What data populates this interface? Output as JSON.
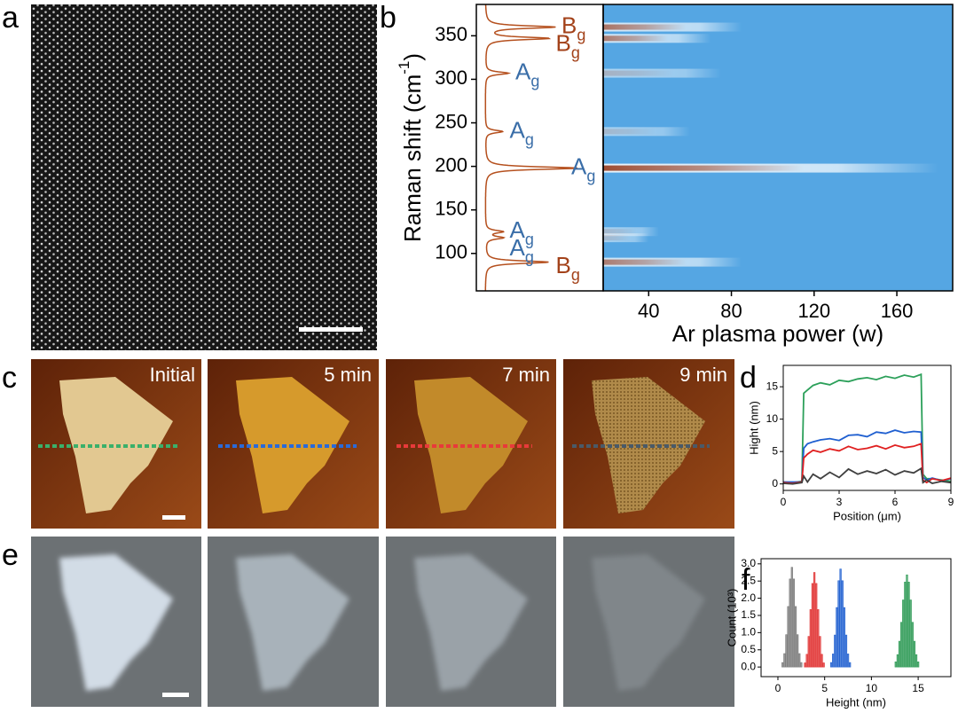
{
  "panel_labels": [
    "a",
    "b",
    "c",
    "d",
    "e",
    "f"
  ],
  "afm_times": [
    "Initial",
    "5 min",
    "7 min",
    "9 min"
  ],
  "chart_data": [
    {
      "type": "heatmap",
      "xlabel": "Ar plasma power (w)",
      "ylabel": "Raman shift (cm",
      "ylabel_sup": "-1",
      "ylabel_end": ")",
      "xlim": [
        18,
        187
      ],
      "xticks": [
        40,
        80,
        120,
        160
      ],
      "ylim": [
        57,
        386
      ],
      "yticks": [
        100,
        150,
        200,
        250,
        300,
        350
      ],
      "background": "#55a6e3",
      "peak_color": "#8b2200",
      "curve_color": "#b5501e",
      "peaks": [
        {
          "label": "B",
          "sub": "g",
          "shift": 360,
          "intensity": 0.6,
          "extent": 85,
          "color": "#a3421a"
        },
        {
          "label": "B",
          "sub": "g",
          "shift": 347,
          "intensity": 0.55,
          "extent": 70,
          "color": "#a3421a"
        },
        {
          "label": "A",
          "sub": "g",
          "shift": 307,
          "intensity": 0.2,
          "extent": 75,
          "color": "#3a6ea8"
        },
        {
          "label": "A",
          "sub": "g",
          "shift": 240,
          "intensity": 0.15,
          "extent": 60,
          "color": "#3a6ea8"
        },
        {
          "label": "A",
          "sub": "g",
          "shift": 198,
          "intensity": 0.8,
          "extent": 180,
          "color": "#3a6ea8"
        },
        {
          "label": "A",
          "sub": "g",
          "shift": 125,
          "intensity": 0.15,
          "extent": 45,
          "color": "#3a6ea8"
        },
        {
          "label": "A",
          "sub": "g",
          "shift": 118,
          "intensity": 0.15,
          "extent": 40,
          "color": "#3a6ea8"
        },
        {
          "label": "B",
          "sub": "g",
          "shift": 90,
          "intensity": 0.55,
          "extent": 85,
          "color": "#a3421a"
        }
      ]
    },
    {
      "type": "line",
      "xlabel": "Position (μm)",
      "ylabel": "Hight (nm)",
      "xlim": [
        0,
        9
      ],
      "xticks": [
        0,
        3,
        6,
        9
      ],
      "ylim": [
        -1,
        18.3
      ],
      "yticks": [
        0,
        5,
        10,
        15
      ],
      "x": [
        0,
        0.5,
        1.0,
        1.1,
        1.3,
        1.6,
        2,
        2.5,
        3,
        3.5,
        4,
        4.5,
        5,
        5.5,
        6,
        6.5,
        7,
        7.4,
        7.5,
        7.7,
        8,
        8.5,
        9
      ],
      "series": [
        {
          "color": "#2ca05a",
          "values": [
            0.3,
            0.2,
            0.4,
            14,
            14.5,
            15.2,
            15.6,
            15.3,
            16,
            15.8,
            16.2,
            16.4,
            16.1,
            16.6,
            16.3,
            16.8,
            16.5,
            16.9,
            1.5,
            0.8,
            0.8,
            0.6,
            0.4
          ]
        },
        {
          "color": "#1f5fd0",
          "values": [
            0.3,
            0.3,
            0.3,
            5.5,
            6.2,
            6.5,
            6.8,
            7,
            6.7,
            7.5,
            7.6,
            7.3,
            8,
            7.8,
            8.3,
            7.9,
            8.1,
            8.0,
            1.0,
            0.6,
            0.9,
            0.5,
            0.8
          ]
        },
        {
          "color": "#e02020",
          "values": [
            0.2,
            0.1,
            0.3,
            4,
            4.6,
            5.2,
            4.9,
            5.4,
            5.1,
            5.8,
            5.3,
            5.5,
            5.9,
            5.4,
            6.0,
            5.6,
            5.8,
            6.2,
            0.6,
            0.2,
            0.8,
            0.5,
            0.9
          ]
        },
        {
          "color": "#404040",
          "values": [
            0.1,
            0,
            0.2,
            1.2,
            0.3,
            1.5,
            0.8,
            1.8,
            1.0,
            2.3,
            1.5,
            2.0,
            1.6,
            2.2,
            1.4,
            2.0,
            1.7,
            2.4,
            0.2,
            0.6,
            0.1,
            0.4,
            0.2
          ]
        }
      ]
    },
    {
      "type": "bar",
      "xlabel": "Height (nm)",
      "ylabel": "Count (10³)",
      "xlim": [
        -1.8,
        18.5
      ],
      "xticks": [
        0,
        5,
        10,
        15
      ],
      "ylim": [
        -0.28,
        3.15
      ],
      "yticks": [
        {
          "value": 0,
          "label": "0.0"
        },
        {
          "value": 0.5,
          "label": "0.5"
        },
        {
          "value": 1,
          "label": "1.0"
        },
        {
          "value": 1.5,
          "label": "1.5"
        },
        {
          "value": 2,
          "label": "2.0"
        },
        {
          "value": 2.5,
          "label": "2.5"
        },
        {
          "value": 3,
          "label": "3.0"
        }
      ],
      "series": [
        {
          "color": "#7a7a7a",
          "x": [
            0.5,
            0.7,
            0.9,
            1.1,
            1.3,
            1.5,
            1.7,
            1.9,
            2.1,
            2.3,
            2.5
          ],
          "values": [
            0.13,
            0.39,
            0.94,
            1.76,
            2.56,
            2.9,
            2.56,
            1.76,
            0.94,
            0.39,
            0.13
          ]
        },
        {
          "color": "#e03030",
          "x": [
            2.9,
            3.1,
            3.3,
            3.5,
            3.7,
            3.9,
            4.1,
            4.3,
            4.5,
            4.7,
            4.9
          ],
          "values": [
            0.12,
            0.37,
            0.89,
            1.67,
            2.43,
            2.75,
            2.43,
            1.67,
            0.89,
            0.37,
            0.12
          ]
        },
        {
          "color": "#2060d0",
          "x": [
            5.7,
            5.9,
            6.1,
            6.3,
            6.5,
            6.7,
            6.9,
            7.1,
            7.3,
            7.5,
            7.7
          ],
          "values": [
            0.13,
            0.38,
            0.93,
            1.73,
            2.51,
            2.85,
            2.51,
            1.73,
            0.93,
            0.38,
            0.13
          ]
        },
        {
          "color": "#2e9a55",
          "x": [
            12.6,
            12.8,
            13.0,
            13.2,
            13.4,
            13.6,
            13.8,
            14.0,
            14.2,
            14.4,
            14.6,
            14.8,
            15.0
          ],
          "values": [
            0.15,
            0.36,
            0.75,
            1.3,
            1.95,
            2.47,
            2.68,
            2.47,
            1.95,
            1.3,
            0.75,
            0.36,
            0.15
          ]
        }
      ]
    }
  ]
}
